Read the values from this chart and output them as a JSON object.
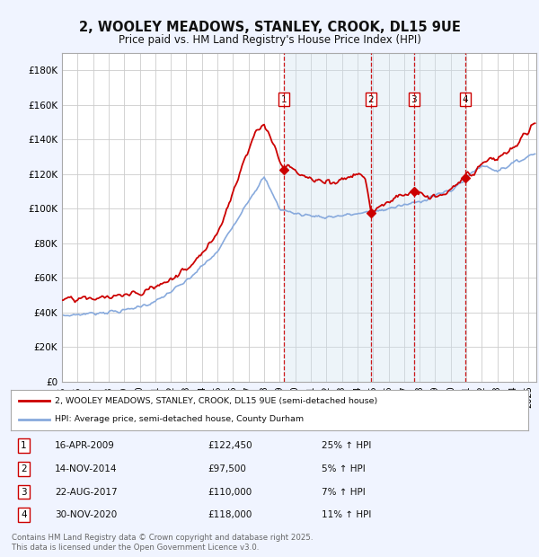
{
  "title1": "2, WOOLEY MEADOWS, STANLEY, CROOK, DL15 9UE",
  "title2": "Price paid vs. HM Land Registry's House Price Index (HPI)",
  "ylim": [
    0,
    190000
  ],
  "yticks": [
    0,
    20000,
    40000,
    60000,
    80000,
    100000,
    120000,
    140000,
    160000,
    180000
  ],
  "xlim_start": 1995.0,
  "xlim_end": 2025.5,
  "legend_line1": "2, WOOLEY MEADOWS, STANLEY, CROOK, DL15 9UE (semi-detached house)",
  "legend_line2": "HPI: Average price, semi-detached house, County Durham",
  "legend_color1": "#cc0000",
  "legend_color2": "#88aadd",
  "sale_dates": [
    2009.29,
    2014.87,
    2017.64,
    2020.92
  ],
  "sale_prices": [
    122450,
    97500,
    110000,
    118000
  ],
  "sale_labels": [
    "1",
    "2",
    "3",
    "4"
  ],
  "sale_date_strs": [
    "16-APR-2009",
    "14-NOV-2014",
    "22-AUG-2017",
    "30-NOV-2020"
  ],
  "sale_price_strs": [
    "£122,450",
    "£97,500",
    "£110,000",
    "£118,000"
  ],
  "sale_hpi_strs": [
    "25% ↑ HPI",
    "5% ↑ HPI",
    "7% ↑ HPI",
    "11% ↑ HPI"
  ],
  "footnote": "Contains HM Land Registry data © Crown copyright and database right 2025.\nThis data is licensed under the Open Government Licence v3.0.",
  "background_color": "#f0f4ff",
  "plot_bg_color": "#ffffff",
  "grid_color": "#cccccc",
  "dashed_line_color": "#cc0000",
  "shade_color": "#cce0f0"
}
